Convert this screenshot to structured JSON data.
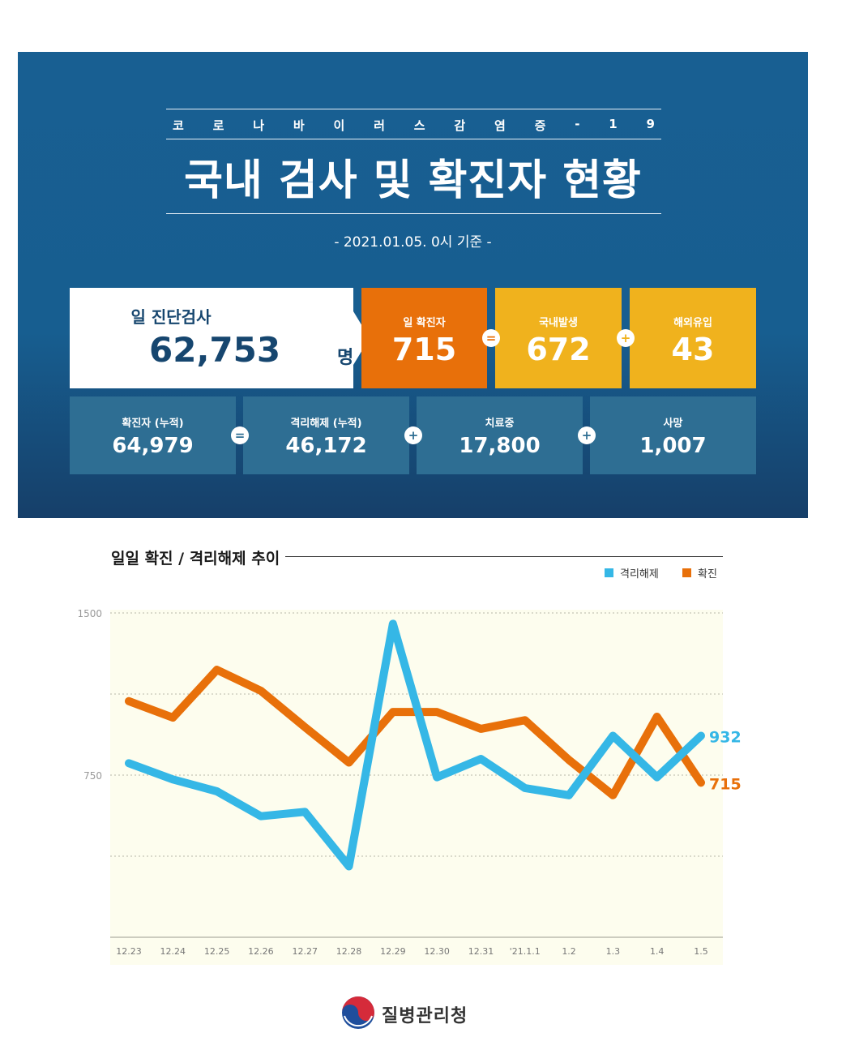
{
  "banner": {
    "subtitle_chars": [
      "코",
      "로",
      "나",
      "바",
      "이",
      "러",
      "스",
      "감",
      "염",
      "증",
      "-",
      "1",
      "9"
    ],
    "title": "국내 검사 및 확진자 현황",
    "date": "- 2021.01.05. 0시 기준 -",
    "colors": {
      "background": "#185f92",
      "dark_orange": "#e8700a",
      "yellow": "#f0b21d",
      "slate": "#2e6e93",
      "navy": "#16466f"
    }
  },
  "daily_tests": {
    "label": "일 진단검사",
    "value": "62,753",
    "unit": "명"
  },
  "daily_confirmed": {
    "label": "일 확진자",
    "value": "715"
  },
  "domestic": {
    "label": "국내발생",
    "value": "672"
  },
  "overseas": {
    "label": "해외유입",
    "value": "43"
  },
  "cumulative": {
    "confirmed": {
      "label": "확진자 (누적)",
      "value": "64,979"
    },
    "released": {
      "label": "격리해제 (누적)",
      "value": "46,172"
    },
    "treating": {
      "label": "치료중",
      "value": "17,800"
    },
    "deaths": {
      "label": "사망",
      "value": "1,007"
    }
  },
  "operators": {
    "equals": "=",
    "plus": "+"
  },
  "chart": {
    "title": "일일 확진 / 격리해제 추이"
  },
  "chart_data": {
    "type": "line",
    "title": "일일 확진 / 격리해제 추이",
    "categories": [
      "12.23",
      "12.24",
      "12.25",
      "12.26",
      "12.27",
      "12.28",
      "12.29",
      "12.30",
      "12.31",
      "'21.1.1",
      "1.2",
      "1.3",
      "1.4",
      "1.5"
    ],
    "series": [
      {
        "name": "격리해제",
        "color": "#35b7e6",
        "values": [
          805,
          730,
          675,
          560,
          580,
          328,
          1450,
          740,
          825,
          690,
          657,
          932,
          740,
          932
        ],
        "end_label": "932"
      },
      {
        "name": "확진",
        "color": "#e8700a",
        "values": [
          1092,
          1016,
          1237,
          1140,
          972,
          808,
          1042,
          1042,
          964,
          1004,
          820,
          657,
          1020,
          715
        ],
        "end_label": "715"
      }
    ],
    "yticks": [
      "1500",
      "750"
    ],
    "ylim": [
      0,
      1500
    ],
    "grid": true,
    "legend": "top-right",
    "background": "#fdfdee"
  },
  "footer": {
    "org": "질병관리청"
  }
}
